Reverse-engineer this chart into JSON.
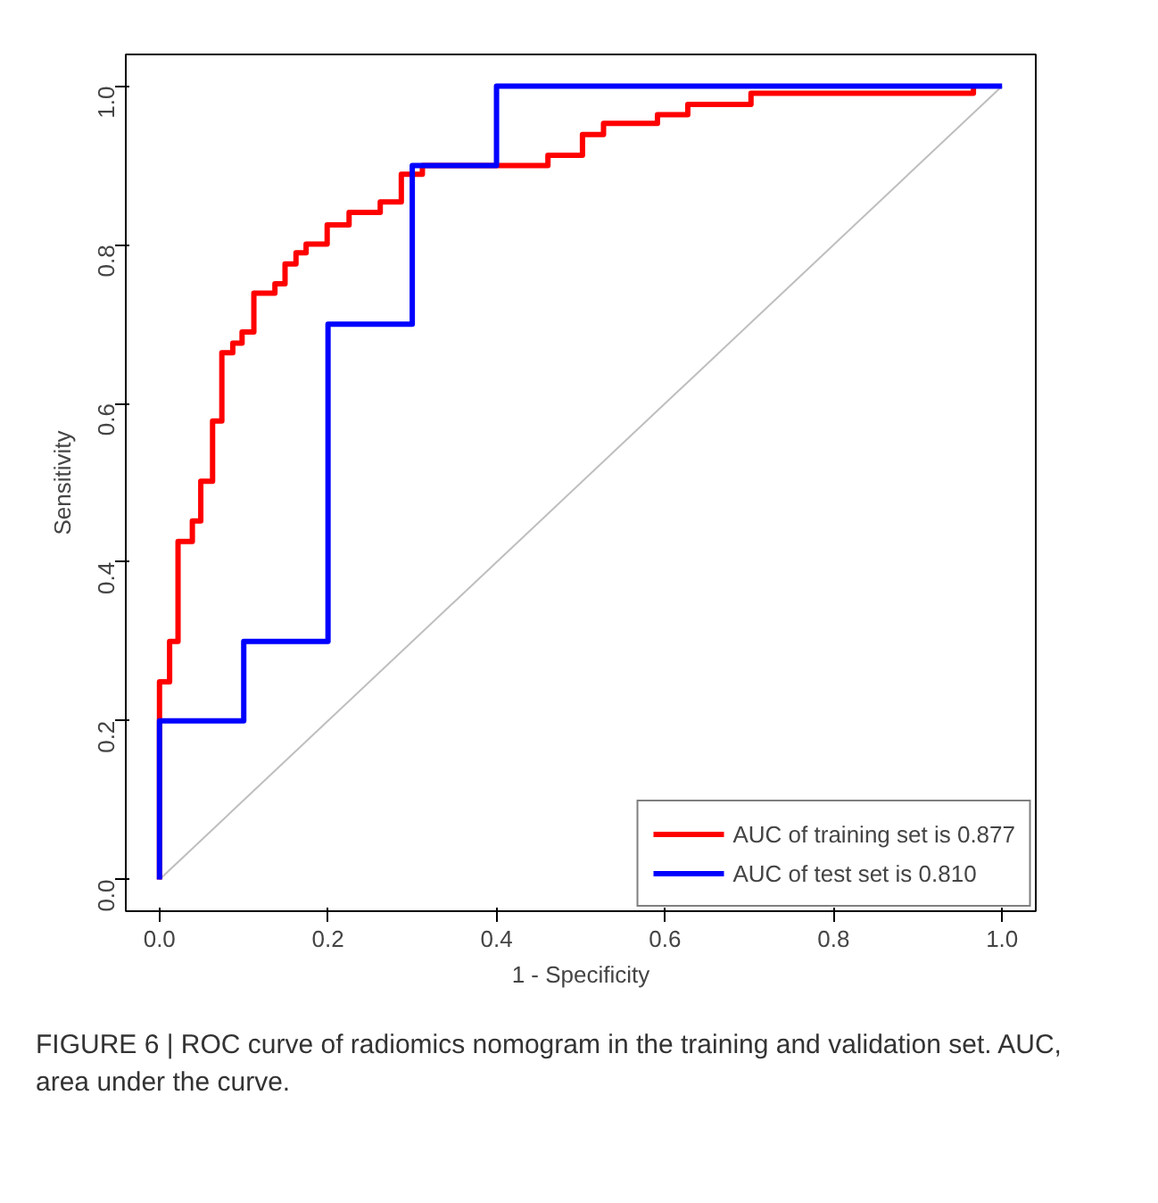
{
  "chart_data": {
    "type": "line",
    "xlabel": "1 - Specificity",
    "ylabel": "Sensitivity",
    "xlim": [
      -0.04,
      1.04
    ],
    "ylim": [
      -0.04,
      1.04
    ],
    "xticks": [
      {
        "value": 0,
        "label": "0.0"
      },
      0.2,
      0.4,
      0.6,
      0.8,
      {
        "value": 1,
        "label": "1.0"
      }
    ],
    "yticks": [
      {
        "value": 0,
        "label": "0.0"
      },
      0.2,
      0.4,
      0.6,
      0.8,
      {
        "value": 1,
        "label": "1.0"
      }
    ],
    "grid": false,
    "legend": "bottom right",
    "series": [
      {
        "color": "#bebebe",
        "x": [
          0,
          1
        ],
        "values": [
          0,
          1
        ]
      },
      {
        "name": "AUC of training set is 0.877",
        "color": "#ff0000",
        "x": [
          0,
          0,
          0.012,
          0.012,
          0.022,
          0.022,
          0.039,
          0.039,
          0.049,
          0.049,
          0.063,
          0.063,
          0.074,
          0.074,
          0.087,
          0.087,
          0.098,
          0.098,
          0.112,
          0.112,
          0.137,
          0.137,
          0.149,
          0.149,
          0.162,
          0.162,
          0.174,
          0.174,
          0.199,
          0.199,
          0.225,
          0.225,
          0.262,
          0.262,
          0.287,
          0.287,
          0.312,
          0.312,
          0.461,
          0.461,
          0.502,
          0.502,
          0.527,
          0.527,
          0.591,
          0.591,
          0.627,
          0.627,
          0.702,
          0.702,
          0.966,
          0.966
        ],
        "values": [
          0,
          0.249,
          0.249,
          0.3,
          0.3,
          0.426,
          0.426,
          0.452,
          0.452,
          0.502,
          0.502,
          0.578,
          0.578,
          0.664,
          0.664,
          0.676,
          0.676,
          0.69,
          0.69,
          0.739,
          0.739,
          0.751,
          0.751,
          0.776,
          0.776,
          0.79,
          0.79,
          0.801,
          0.801,
          0.825,
          0.825,
          0.841,
          0.841,
          0.854,
          0.854,
          0.889,
          0.889,
          0.9,
          0.9,
          0.913,
          0.913,
          0.939,
          0.939,
          0.953,
          0.953,
          0.964,
          0.964,
          0.977,
          0.977,
          0.991,
          0.991,
          1
        ]
      },
      {
        "name": "AUC of test set is 0.810",
        "color": "#0000ff",
        "x": [
          0,
          0,
          0.1,
          0.1,
          0.2,
          0.2,
          0.3,
          0.3,
          0.4,
          0.4,
          1
        ],
        "values": [
          0,
          0.2,
          0.2,
          0.3,
          0.3,
          0.7,
          0.7,
          0.9,
          0.9,
          1,
          1
        ]
      }
    ],
    "annotations": [
      "FIGURE 6 | ROC curve of radiomics nomogram in the training and validation set. AUC, area under the curve."
    ]
  }
}
